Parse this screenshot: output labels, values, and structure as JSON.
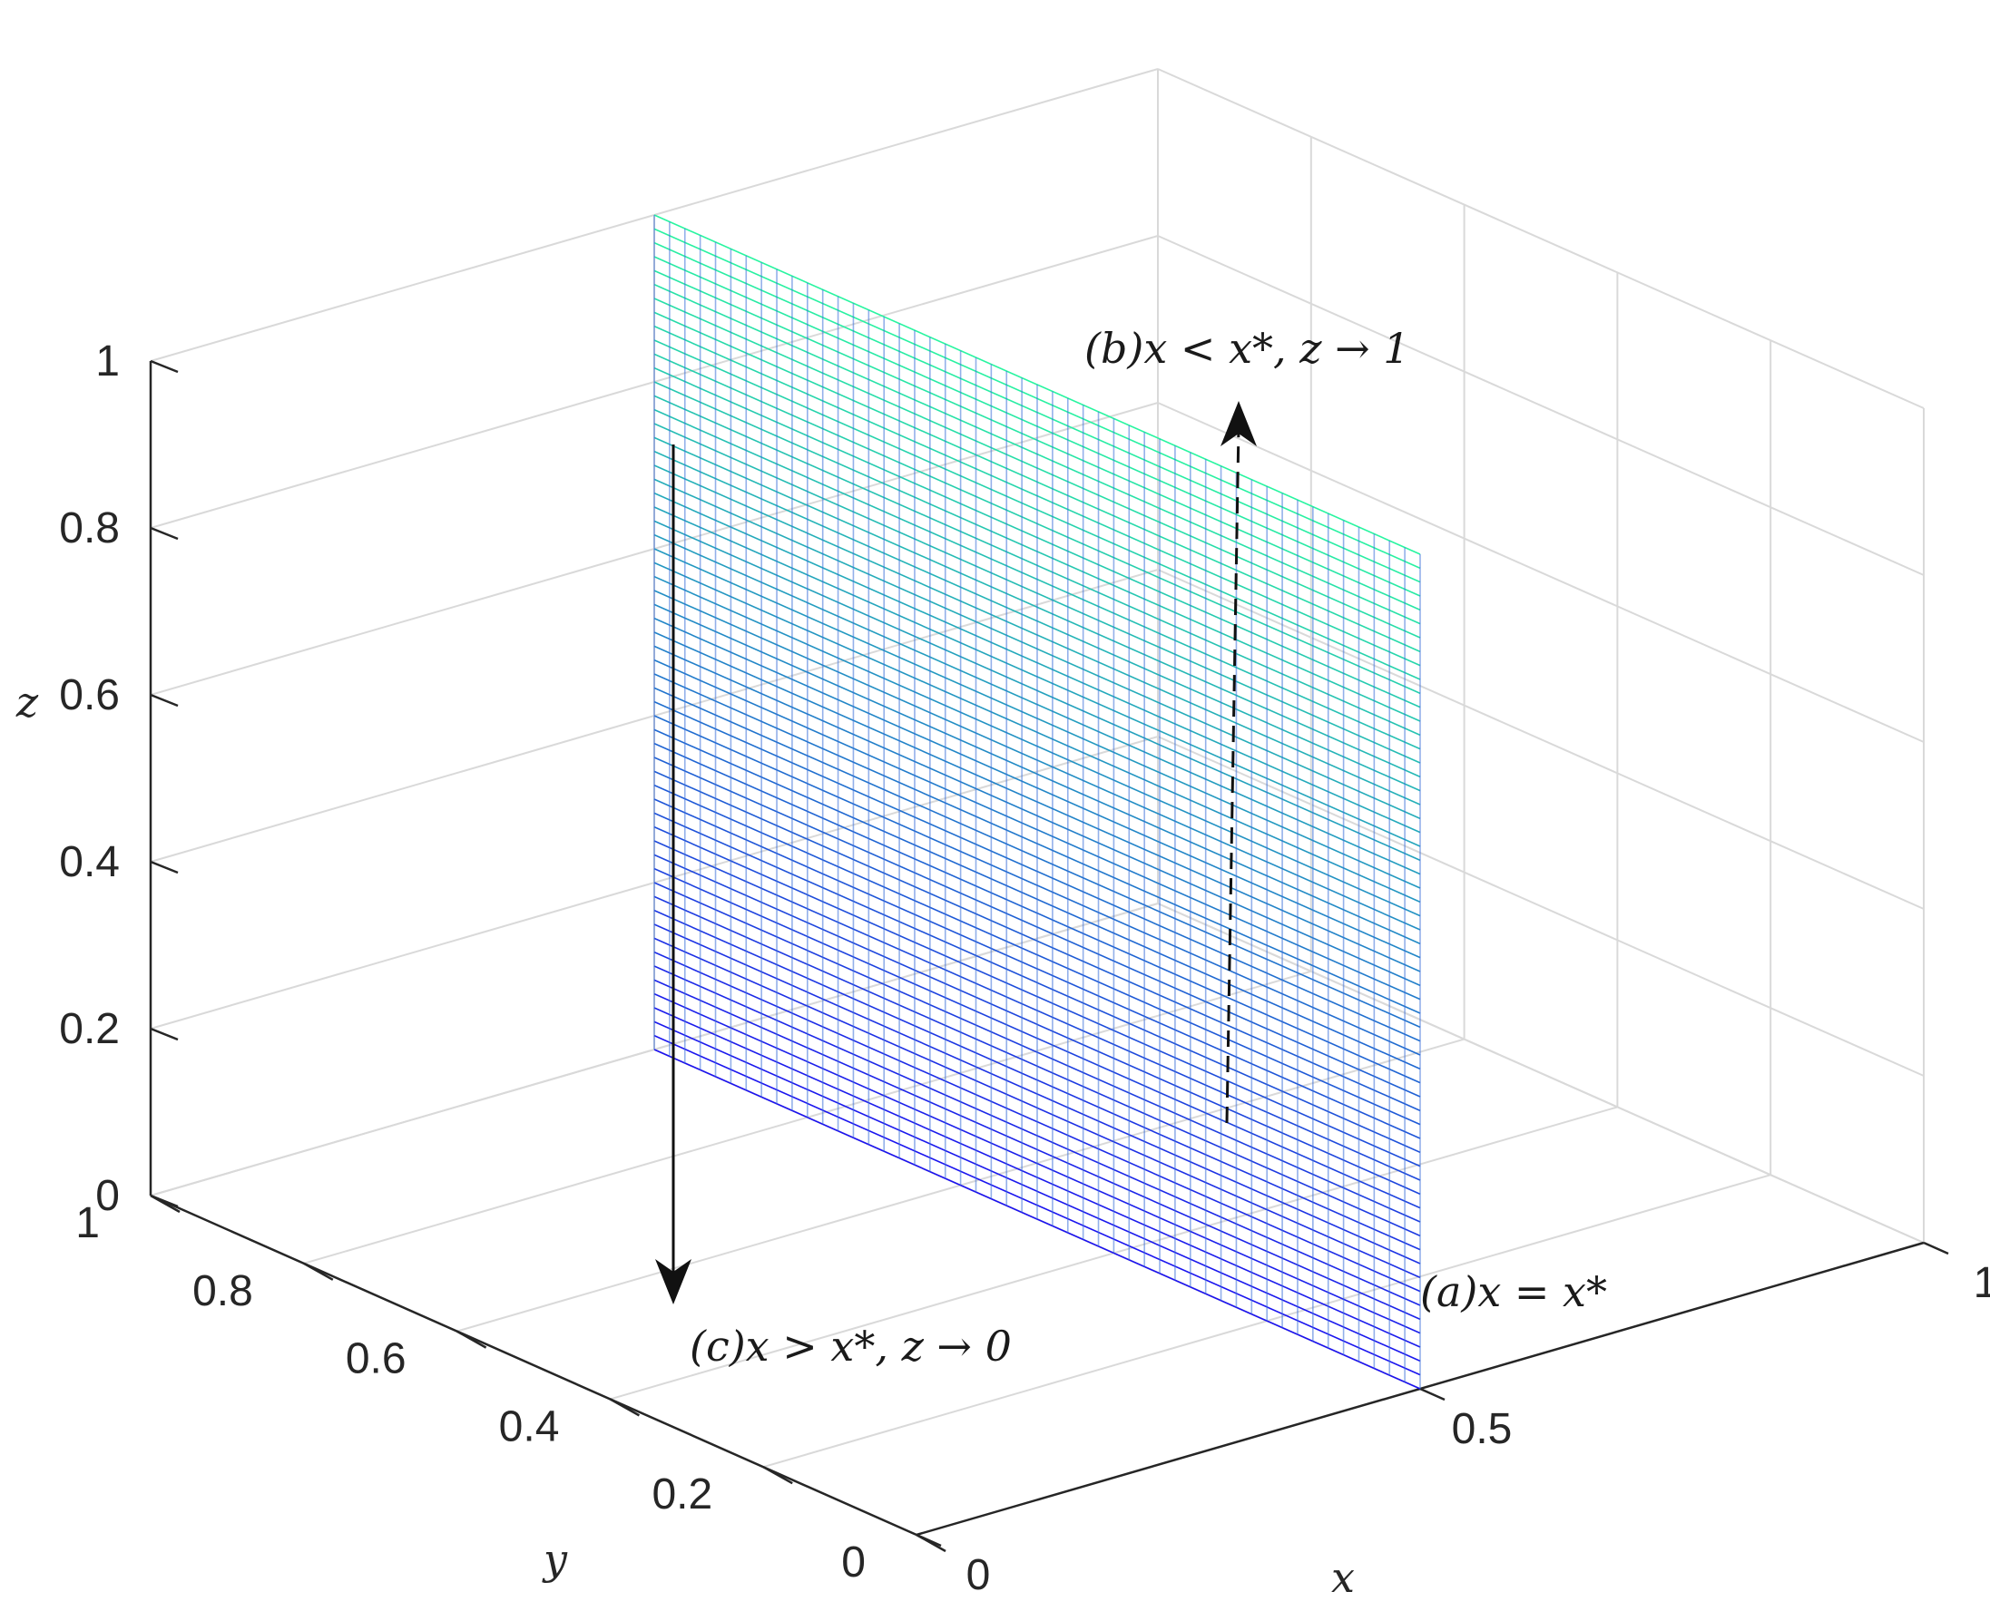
{
  "chart_data": {
    "type": "surface",
    "x_label": "x",
    "y_label": "y",
    "z_label": "z",
    "x_ticks": [
      "0",
      "0.5",
      "1"
    ],
    "y_ticks": [
      "0",
      "0.2",
      "0.4",
      "0.6",
      "0.8",
      "1"
    ],
    "z_ticks": [
      "0",
      "0.2",
      "0.4",
      "0.6",
      "0.8",
      "1"
    ],
    "xlim": [
      0,
      1
    ],
    "ylim": [
      0,
      1
    ],
    "zlim": [
      0,
      1
    ],
    "grid": true,
    "surface": {
      "x": 0.5,
      "y_range": [
        0,
        1
      ],
      "z_range": [
        0,
        1
      ],
      "mesh_rows": 60,
      "mesh_cols": 50,
      "colormap": [
        "#1010ff",
        "#22c8a0",
        "#22f0a0"
      ],
      "line_color_low": "#1a10f0",
      "line_color_high": "#28f5a0"
    },
    "annotations": [
      {
        "label": "(a)",
        "math": "x = x*",
        "text": "(a)x = x*"
      },
      {
        "label": "(b)",
        "math": "x < x*, z → 1",
        "text": "(b)x < x*, z → 1",
        "arrow": "dashed-up"
      },
      {
        "label": "(c)",
        "math": "x > x*, z → 0",
        "text": "(c)x > x*, z → 0",
        "arrow": "solid-down"
      }
    ]
  }
}
